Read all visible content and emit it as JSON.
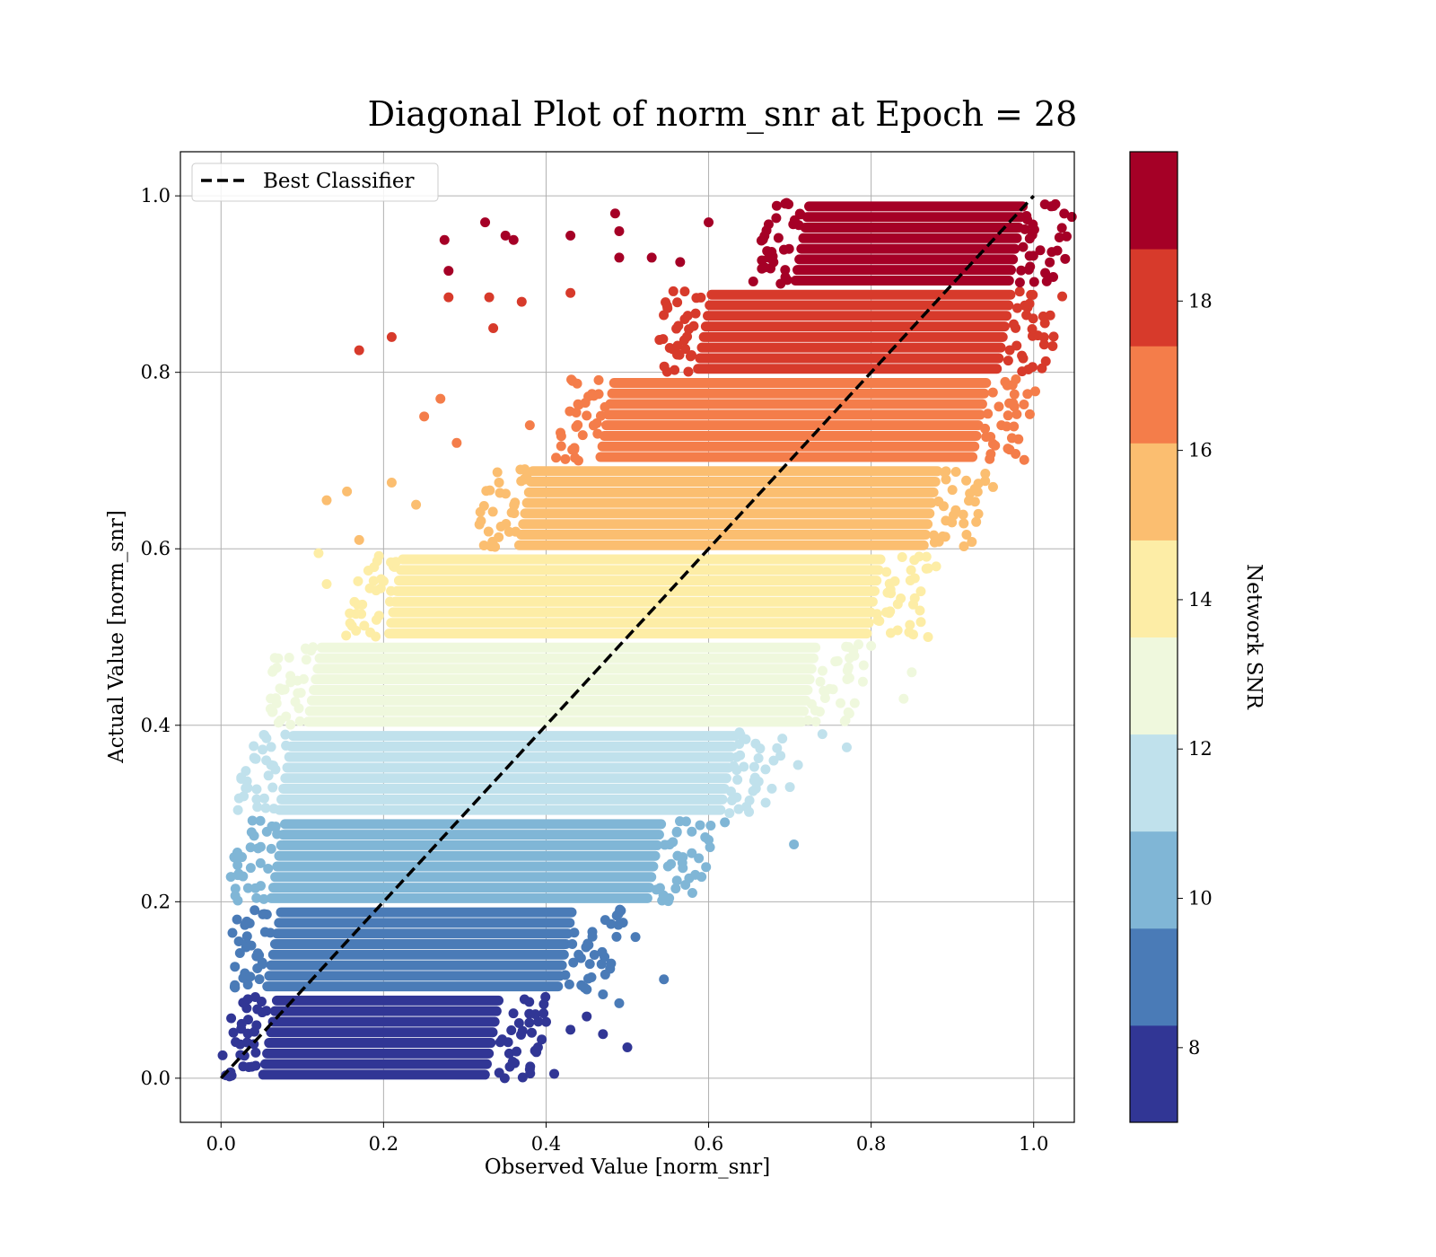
{
  "chart_data": {
    "type": "scatter",
    "title": "Diagonal Plot of norm_snr at Epoch = 28",
    "xlabel": "Observed Value [norm_snr]",
    "ylabel": "Actual Value [norm_snr]",
    "xlim": [
      -0.05,
      1.05
    ],
    "ylim": [
      -0.05,
      1.05
    ],
    "xticks": [
      "0.0",
      "0.2",
      "0.4",
      "0.6",
      "0.8",
      "1.0"
    ],
    "yticks": [
      "0.0",
      "0.2",
      "0.4",
      "0.6",
      "0.8",
      "1.0"
    ],
    "grid": true,
    "legend": {
      "position": "top-left",
      "entries": [
        "Best Classifier"
      ]
    },
    "reference_line": {
      "name": "Best Classifier",
      "style": "dashed",
      "color": "#000000",
      "x": [
        0.0,
        1.0
      ],
      "y": [
        0.0,
        1.0
      ]
    },
    "colorbar": {
      "label": "Network SNR",
      "range": [
        7,
        20
      ],
      "ticks": [
        "8",
        "10",
        "12",
        "14",
        "16",
        "18"
      ],
      "tick_values": [
        8,
        10,
        12,
        14,
        16,
        18
      ],
      "colors": [
        "#313695",
        "#4a7bb7",
        "#80b6d6",
        "#c0e1ec",
        "#eff8dd",
        "#fdeda6",
        "#fbbe70",
        "#f47d4a",
        "#d73a2b",
        "#a50026"
      ]
    },
    "bands": [
      {
        "y_range": [
          0.0,
          0.1
        ],
        "core_x": [
          0.045,
          0.33
        ],
        "color": "#313695",
        "outliers": [
          [
            0.38,
            0.01
          ],
          [
            0.41,
            0.005
          ],
          [
            0.45,
            0.07
          ],
          [
            0.47,
            0.05
          ],
          [
            0.5,
            0.035
          ],
          [
            0.43,
            0.055
          ],
          [
            0.39,
            0.035
          ]
        ]
      },
      {
        "y_range": [
          0.1,
          0.2
        ],
        "core_x": [
          0.05,
          0.42
        ],
        "color": "#4a7bb7",
        "outliers": [
          [
            0.545,
            0.112
          ],
          [
            0.49,
            0.085
          ],
          [
            0.47,
            0.095
          ],
          [
            0.51,
            0.16
          ],
          [
            0.44,
            0.14
          ],
          [
            0.48,
            0.13
          ]
        ]
      },
      {
        "y_range": [
          0.2,
          0.3
        ],
        "core_x": [
          0.055,
          0.53
        ],
        "color": "#80b6d6",
        "outliers": [
          [
            0.705,
            0.265
          ],
          [
            0.6,
            0.27
          ],
          [
            0.58,
            0.21
          ],
          [
            0.62,
            0.29
          ],
          [
            0.55,
            0.24
          ]
        ]
      },
      {
        "y_range": [
          0.3,
          0.4
        ],
        "core_x": [
          0.065,
          0.62
        ],
        "color": "#c0e1ec",
        "outliers": [
          [
            0.77,
            0.375
          ],
          [
            0.7,
            0.33
          ],
          [
            0.74,
            0.39
          ],
          [
            0.68,
            0.36
          ],
          [
            0.67,
            0.35
          ],
          [
            0.71,
            0.355
          ]
        ]
      },
      {
        "y_range": [
          0.4,
          0.5
        ],
        "core_x": [
          0.1,
          0.72
        ],
        "color": "#eff8dd",
        "outliers": [
          [
            0.84,
            0.43
          ],
          [
            0.85,
            0.46
          ],
          [
            0.8,
            0.49
          ],
          [
            0.08,
            0.41
          ],
          [
            0.075,
            0.44
          ]
        ]
      },
      {
        "y_range": [
          0.5,
          0.6
        ],
        "core_x": [
          0.2,
          0.8
        ],
        "color": "#fdeda6",
        "outliers": [
          [
            0.12,
            0.595
          ],
          [
            0.13,
            0.56
          ],
          [
            0.87,
            0.5
          ],
          [
            0.86,
            0.53
          ],
          [
            0.88,
            0.58
          ]
        ]
      },
      {
        "y_range": [
          0.6,
          0.7
        ],
        "core_x": [
          0.36,
          0.87
        ],
        "color": "#fbbe70",
        "outliers": [
          [
            0.13,
            0.655
          ],
          [
            0.155,
            0.665
          ],
          [
            0.21,
            0.675
          ],
          [
            0.24,
            0.65
          ],
          [
            0.95,
            0.67
          ],
          [
            0.17,
            0.61
          ]
        ]
      },
      {
        "y_range": [
          0.7,
          0.8
        ],
        "core_x": [
          0.46,
          0.93
        ],
        "color": "#f47d4a",
        "outliers": [
          [
            0.27,
            0.77
          ],
          [
            0.25,
            0.75
          ],
          [
            0.29,
            0.72
          ],
          [
            0.97,
            0.765
          ],
          [
            0.38,
            0.74
          ]
        ]
      },
      {
        "y_range": [
          0.8,
          0.9
        ],
        "core_x": [
          0.58,
          0.96
        ],
        "color": "#d73a2b",
        "outliers": [
          [
            0.17,
            0.825
          ],
          [
            0.21,
            0.84
          ],
          [
            0.28,
            0.885
          ],
          [
            0.33,
            0.885
          ],
          [
            0.37,
            0.88
          ],
          [
            0.335,
            0.85
          ],
          [
            0.43,
            0.89
          ]
        ]
      },
      {
        "y_range": [
          0.9,
          1.0
        ],
        "core_x": [
          0.7,
          0.975
        ],
        "color": "#a50026",
        "outliers": [
          [
            0.275,
            0.95
          ],
          [
            0.28,
            0.915
          ],
          [
            0.325,
            0.97
          ],
          [
            0.35,
            0.955
          ],
          [
            0.36,
            0.95
          ],
          [
            0.43,
            0.955
          ],
          [
            0.485,
            0.98
          ],
          [
            0.49,
            0.96
          ],
          [
            0.49,
            0.93
          ],
          [
            0.53,
            0.93
          ],
          [
            0.565,
            0.925
          ],
          [
            0.6,
            0.97
          ]
        ]
      }
    ]
  }
}
